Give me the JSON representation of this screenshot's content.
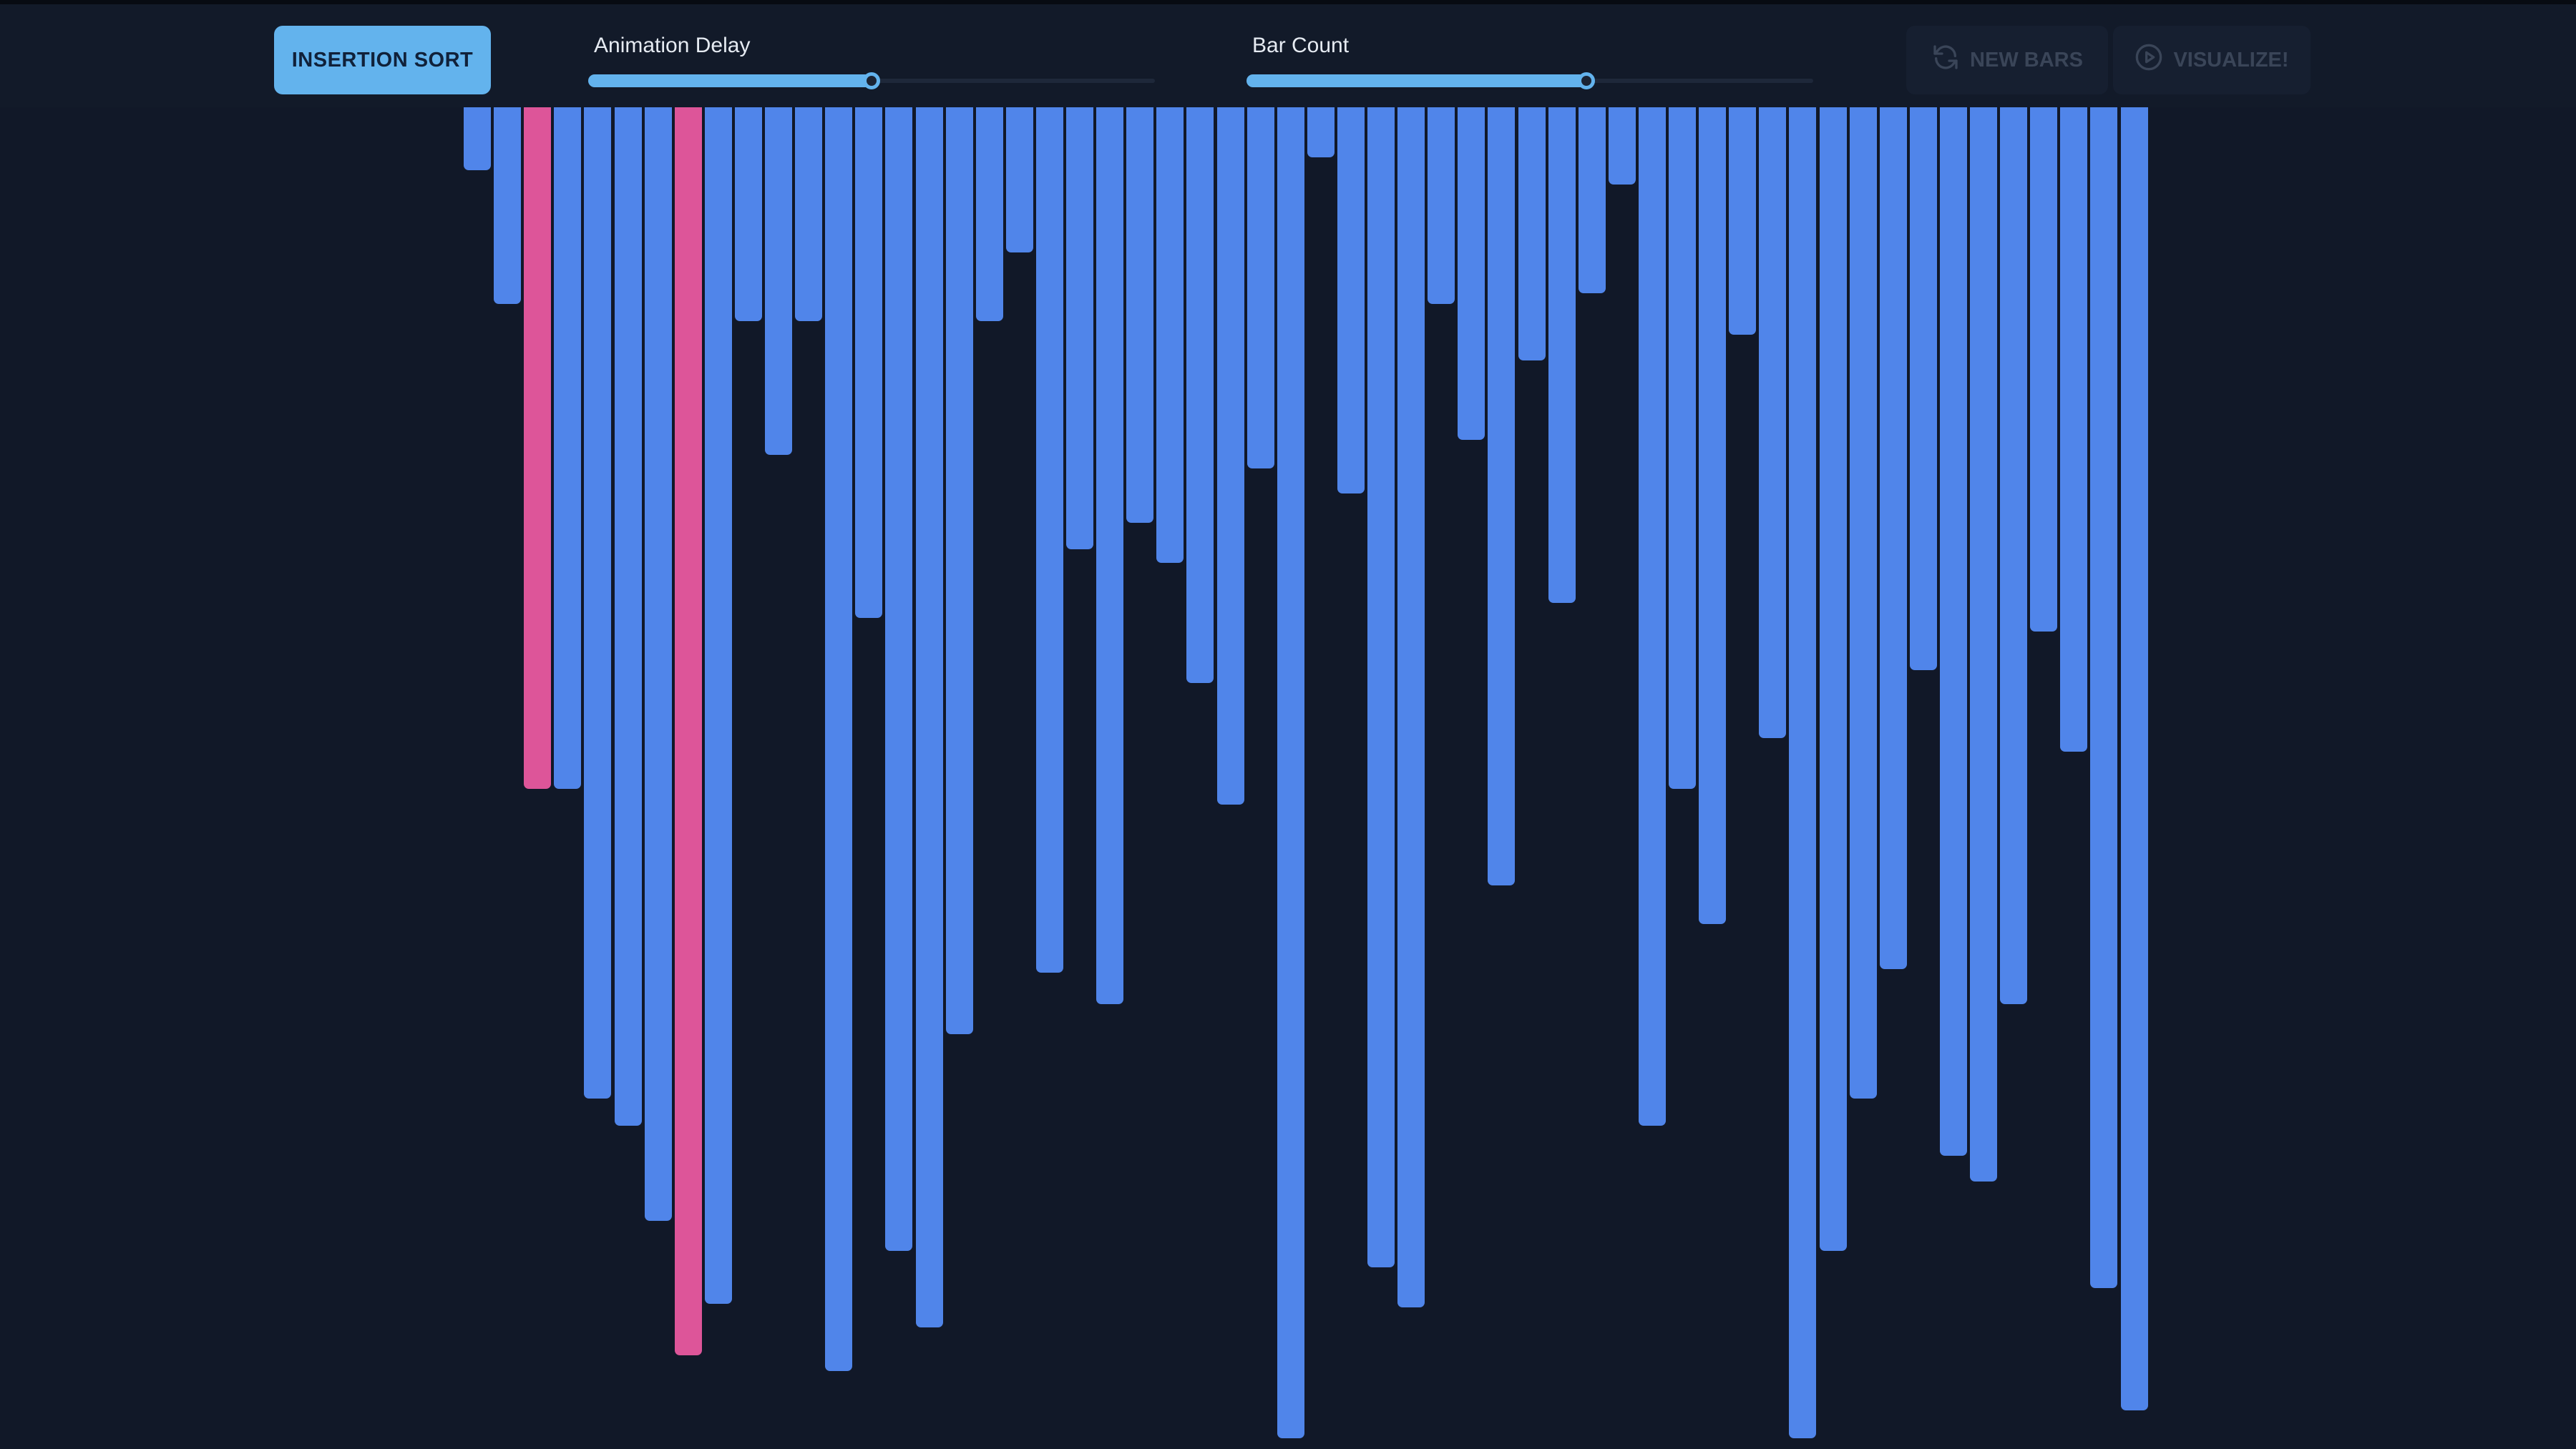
{
  "toolbar": {
    "algorithm_label": "INSERTION SORT",
    "animation_delay": {
      "label": "Animation Delay",
      "value_fraction": 0.5
    },
    "bar_count": {
      "label": "Bar Count",
      "value_fraction": 0.6
    },
    "new_bars": {
      "label": "NEW BARS",
      "icon": "refresh-icon"
    },
    "visualize": {
      "label": "VISUALIZE!",
      "icon": "play-icon"
    }
  },
  "colors": {
    "background": "#111828",
    "toolbar": "#121a29",
    "accent": "#63b3ed",
    "bar": "#5085ea",
    "bar_active": "#dd5599"
  },
  "bars": [
    {
      "value": 88
    },
    {
      "value": 275
    },
    {
      "value": 953,
      "active": true
    },
    {
      "value": 953
    },
    {
      "value": 1386
    },
    {
      "value": 1424
    },
    {
      "value": 1557
    },
    {
      "value": 1745,
      "active": true
    },
    {
      "value": 1673
    },
    {
      "value": 299
    },
    {
      "value": 486
    },
    {
      "value": 299
    },
    {
      "value": 1767
    },
    {
      "value": 714
    },
    {
      "value": 1599
    },
    {
      "value": 1706
    },
    {
      "value": 1296
    },
    {
      "value": 299
    },
    {
      "value": 203
    },
    {
      "value": 1210
    },
    {
      "value": 618
    },
    {
      "value": 1254
    },
    {
      "value": 581
    },
    {
      "value": 637
    },
    {
      "value": 805
    },
    {
      "value": 975
    },
    {
      "value": 505
    },
    {
      "value": 1861
    },
    {
      "value": 70
    },
    {
      "value": 540
    },
    {
      "value": 1622
    },
    {
      "value": 1678
    },
    {
      "value": 275
    },
    {
      "value": 465
    },
    {
      "value": 1088
    },
    {
      "value": 354
    },
    {
      "value": 693
    },
    {
      "value": 260
    },
    {
      "value": 108
    },
    {
      "value": 1424
    },
    {
      "value": 953
    },
    {
      "value": 1142
    },
    {
      "value": 318
    },
    {
      "value": 882
    },
    {
      "value": 1861
    },
    {
      "value": 1599
    },
    {
      "value": 1386
    },
    {
      "value": 1205
    },
    {
      "value": 787
    },
    {
      "value": 1466
    },
    {
      "value": 1502
    },
    {
      "value": 1254
    },
    {
      "value": 733
    },
    {
      "value": 901
    },
    {
      "value": 1651
    },
    {
      "value": 1822
    }
  ]
}
